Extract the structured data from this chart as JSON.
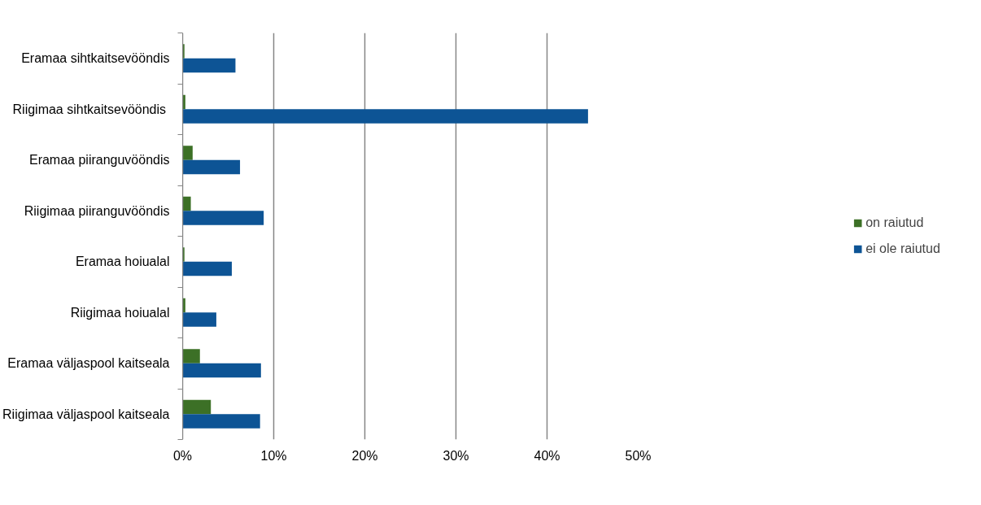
{
  "chart_data": {
    "type": "bar",
    "orientation": "horizontal",
    "categories": [
      "Eramaa sihtkaitsevööndis",
      "Riigimaa  sihtkaitsevööndis",
      "Eramaa piiranguvööndis",
      "Riigimaa piiranguvööndis",
      "Eramaa hoiualal",
      "Riigimaa hoiualal",
      "Eramaa väljaspool kaitseala",
      "Riigimaa väljaspool kaitseala"
    ],
    "series": [
      {
        "name": "on raiutud",
        "color": "#3c7026",
        "values": [
          0.2,
          0.3,
          1.1,
          0.9,
          0.2,
          0.3,
          1.9,
          3.1
        ]
      },
      {
        "name": "ei ole raiutud",
        "color": "#0d5495",
        "values": [
          5.8,
          44.5,
          6.3,
          8.9,
          5.4,
          3.7,
          8.6,
          8.5
        ]
      }
    ],
    "xlim": [
      0,
      50
    ],
    "xticks": [
      {
        "value": 0,
        "label": "0%"
      },
      {
        "value": 10,
        "label": "10%"
      },
      {
        "value": 20,
        "label": "20%"
      },
      {
        "value": 30,
        "label": "30%"
      },
      {
        "value": 40,
        "label": "40%"
      },
      {
        "value": 50,
        "label": "50%"
      }
    ],
    "grid": "x",
    "legend": "right"
  }
}
